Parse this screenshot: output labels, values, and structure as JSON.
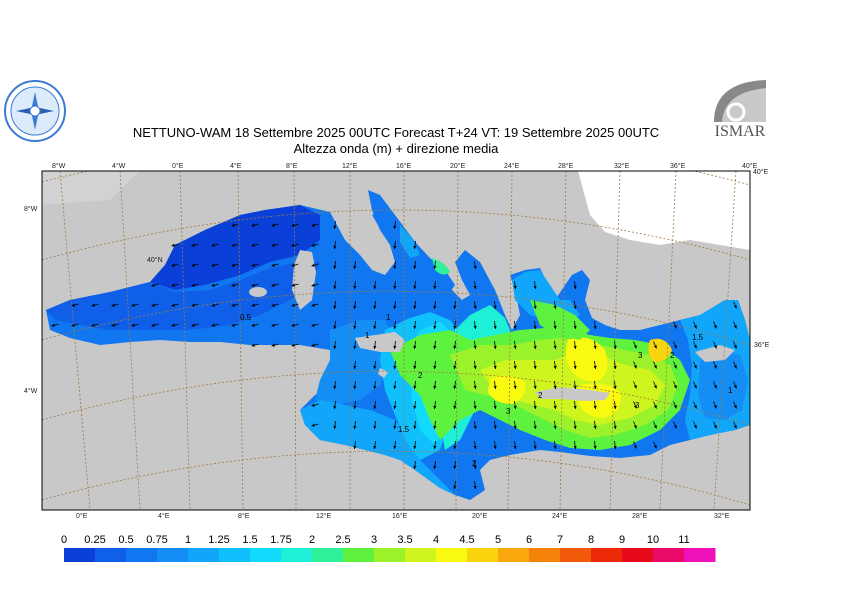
{
  "title_line1": "NETTUNO-WAM  18 Settembre 2025 00UTC Forecast T+24 VT: 19 Settembre 2025 00UTC",
  "title_line2": "Altezza onda (m) + direzione media",
  "logos": {
    "left": {
      "name": "mare-organization-emblem",
      "color": "#3a7bd5"
    },
    "right": {
      "text": "ISMAR",
      "color": "#555555"
    }
  },
  "top_axis_labels": [
    "8°W",
    "4°W",
    "0°E",
    "4°E",
    "8°E",
    "12°E",
    "16°E",
    "20°E",
    "24°E",
    "28°E",
    "32°E",
    "36°E",
    "40°E"
  ],
  "bottom_axis_labels": [
    "0°E",
    "4°E",
    "8°E",
    "12°E",
    "16°E",
    "20°E",
    "24°E",
    "28°E",
    "32°E"
  ],
  "left_axis_labels": [
    "8°W",
    "4°W"
  ],
  "right_axis_labels": [
    "40°E",
    "36°E"
  ],
  "inner_labels": [
    "40°N"
  ],
  "contour_labels": [
    "0.5",
    "1",
    "1",
    "1.5",
    "2",
    "2",
    "2",
    "3",
    "3",
    "3",
    "1.5",
    "2",
    "1"
  ],
  "legend": {
    "labels": [
      "0",
      "0.25",
      "0.5",
      "0.75",
      "1",
      "1.25",
      "1.5",
      "1.75",
      "2",
      "2.5",
      "3",
      "3.5",
      "4",
      "4.5",
      "5",
      "6",
      "7",
      "8",
      "9",
      "10",
      "11"
    ],
    "colors": [
      "#0a3fd8",
      "#0f5fe8",
      "#1177f0",
      "#148ef5",
      "#12a6fa",
      "#0fc0fc",
      "#12dafc",
      "#1ef0d8",
      "#2ef19a",
      "#5ef23f",
      "#9cf22a",
      "#cff51e",
      "#fafa10",
      "#fad40f",
      "#f8a80c",
      "#f5820a",
      "#f05a08",
      "#ec2a07",
      "#e80a1a",
      "#ea0a6a",
      "#ee10b8"
    ]
  },
  "colors": {
    "land": "#c8c8c8",
    "grid": "#a07a40",
    "arrow": "#000000",
    "frame": "#000000"
  }
}
